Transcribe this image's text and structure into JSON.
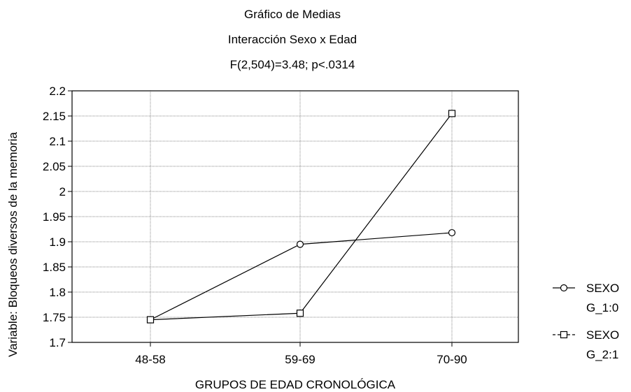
{
  "chart_data": {
    "type": "line",
    "title": "Gráfico de Medias",
    "subtitle": "Interacción Sexo x Edad",
    "stat_line": "F(2,504)=3.48; p<.0314",
    "xlabel": "GRUPOS DE EDAD CRONOLÓGICA",
    "ylabel": "Variable: Bloqueos diversos de la memoria",
    "categories": [
      "48-58",
      "59-69",
      "70-90"
    ],
    "ylim": [
      1.7,
      2.2
    ],
    "yticks": [
      1.7,
      1.75,
      1.8,
      1.85,
      1.9,
      1.95,
      2,
      2.05,
      2.1,
      2.15,
      2.2
    ],
    "ytick_labels": [
      "1.7",
      "1.75",
      "1.8",
      "1.85",
      "1.9",
      "1.95",
      "2",
      "2.05",
      "2.1",
      "2.15",
      "2.2"
    ],
    "grid": true,
    "legend_position": "right",
    "series": [
      {
        "name_line1": "SEXO",
        "name_line2": "G_1:0",
        "marker": "circle",
        "line_style": "solid",
        "color": "#000000",
        "values": [
          1.745,
          1.895,
          1.918
        ]
      },
      {
        "name_line1": "SEXO",
        "name_line2": "G_2:1",
        "marker": "square",
        "line_style": "solid",
        "color": "#000000",
        "values": [
          1.745,
          1.758,
          2.155
        ]
      }
    ]
  }
}
